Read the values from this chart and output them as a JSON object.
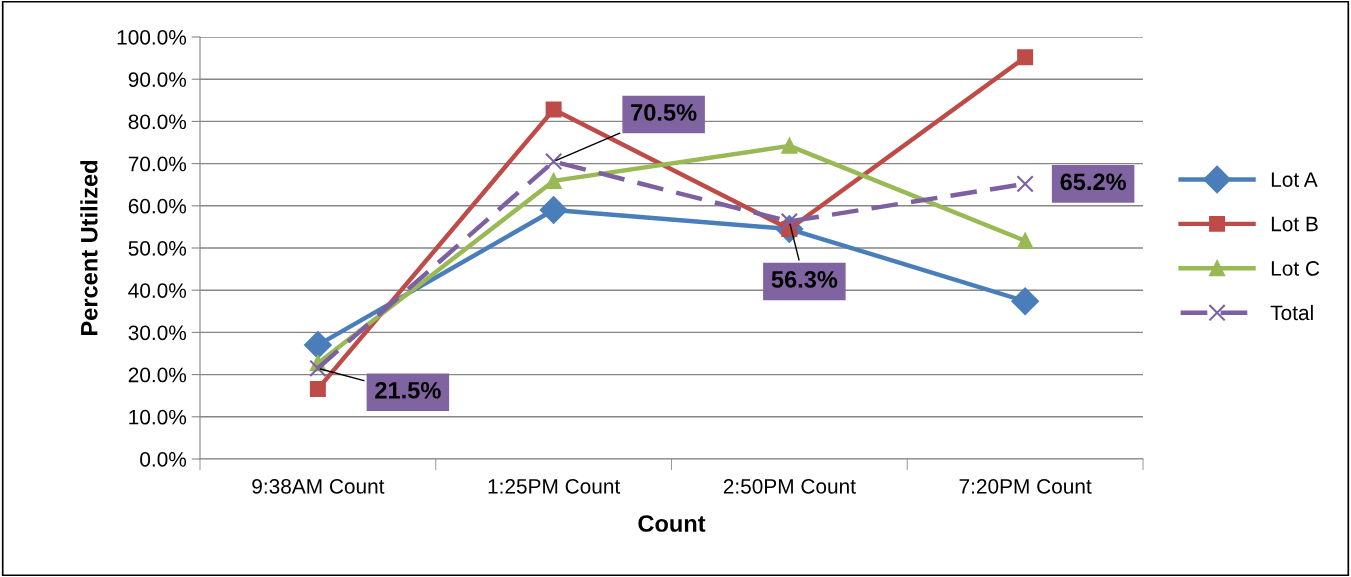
{
  "chart_data": {
    "type": "line",
    "xlabel": "Count",
    "ylabel": "Percent Utilized",
    "categories": [
      "9:38AM Count",
      "1:25PM Count",
      "2:50PM Count",
      "7:20PM Count"
    ],
    "series": [
      {
        "name": "Lot A",
        "color": "#4a7ebb",
        "values": [
          27.0,
          59.0,
          54.5,
          37.4
        ],
        "marker": "diamond",
        "line_style": "solid"
      },
      {
        "name": "Lot B",
        "color": "#be4b48",
        "values": [
          16.6,
          82.8,
          54.5,
          95.2
        ],
        "marker": "square",
        "line_style": "solid"
      },
      {
        "name": "Lot C",
        "color": "#98b954",
        "values": [
          22.7,
          65.9,
          74.2,
          51.7
        ],
        "marker": "triangle",
        "line_style": "solid"
      },
      {
        "name": "Total",
        "color": "#7d60a0",
        "values": [
          21.5,
          70.5,
          56.3,
          65.2
        ],
        "marker": "cross",
        "line_style": "dashed",
        "value_labels": [
          "21.5%",
          "70.5%",
          "56.3%",
          "65.2%"
        ]
      }
    ],
    "ylim": [
      0,
      100
    ],
    "yticks": [
      {
        "value": 0,
        "label": "0.0%"
      },
      {
        "value": 10,
        "label": "10.0%"
      },
      {
        "value": 20,
        "label": "20.0%"
      },
      {
        "value": 30,
        "label": "30.0%"
      },
      {
        "value": 40,
        "label": "40.0%"
      },
      {
        "value": 50,
        "label": "50.0%"
      },
      {
        "value": 60,
        "label": "60.0%"
      },
      {
        "value": 70,
        "label": "70.0%"
      },
      {
        "value": 80,
        "label": "80.0%"
      },
      {
        "value": 90,
        "label": "90.0%"
      },
      {
        "value": 100,
        "label": "100.0%"
      }
    ],
    "grid": "y",
    "legend": "right"
  }
}
